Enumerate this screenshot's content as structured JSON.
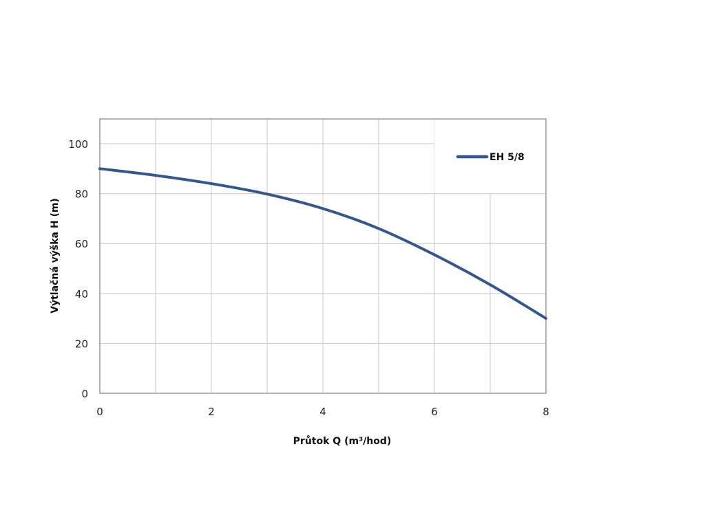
{
  "chart_data": {
    "type": "line",
    "title": "",
    "xlabel": "Průtok Q (m³/hod)",
    "ylabel": "Výtlačná výška H (m)",
    "xlim": [
      0,
      8
    ],
    "ylim": [
      0,
      110
    ],
    "xticks": [
      0,
      2,
      4,
      6,
      8
    ],
    "yticks": [
      0,
      20,
      40,
      60,
      80,
      100
    ],
    "grid": true,
    "grid_x_step": 1,
    "grid_y_step": 20,
    "legend_position": "top-right",
    "series": [
      {
        "name": "EH 5/8",
        "color": "#34578f",
        "x": [
          0,
          1,
          2,
          3,
          4,
          5,
          6,
          7,
          8
        ],
        "y": [
          90,
          87.3,
          84,
          79.8,
          74,
          66,
          55.5,
          43.5,
          30
        ]
      }
    ]
  }
}
